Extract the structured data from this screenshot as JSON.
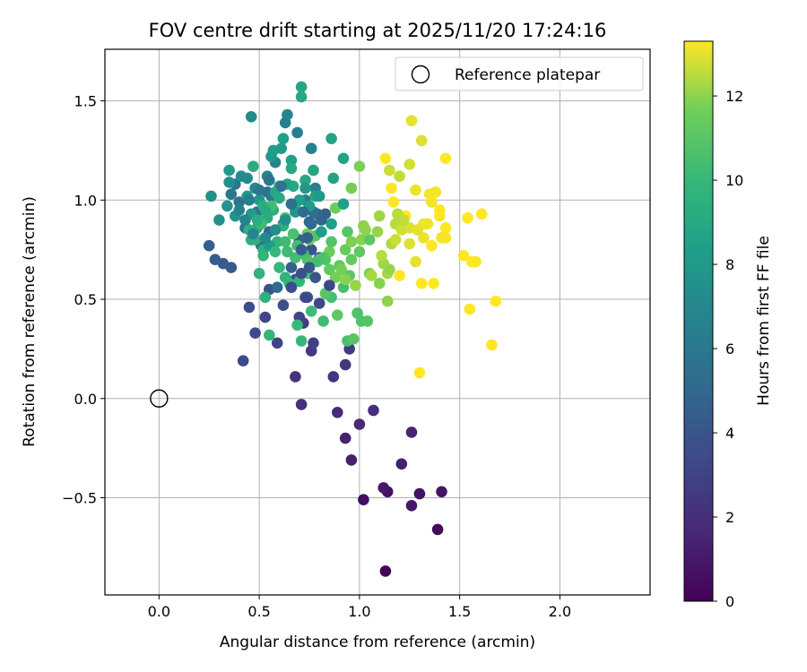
{
  "chart_data": {
    "type": "scatter",
    "title": "FOV centre drift starting at 2025/11/20 17:24:16",
    "xlabel": "Angular distance from reference (arcmin)",
    "ylabel": "Rotation from reference (arcmin)",
    "xlim": [
      -0.27,
      2.45
    ],
    "ylim": [
      -0.99,
      1.76
    ],
    "xticks": [
      0.0,
      0.5,
      1.0,
      1.5,
      2.0
    ],
    "xtick_labels": [
      "0.0",
      "0.5",
      "1.0",
      "1.5",
      "2.0"
    ],
    "yticks": [
      -0.5,
      0.0,
      0.5,
      1.0,
      1.5
    ],
    "ytick_labels": [
      "−0.5",
      "0.0",
      "0.5",
      "1.0",
      "1.5"
    ],
    "grid": true,
    "legend": {
      "position": "top-right",
      "entries": [
        "Reference platepar"
      ]
    },
    "reference_point": {
      "x": 0.0,
      "y": 0.0,
      "label": "Reference platepar"
    },
    "colorbar": {
      "label": "Hours from first FF file",
      "range": [
        0,
        13.3
      ],
      "ticks": [
        0,
        2,
        4,
        6,
        8,
        10,
        12
      ],
      "tick_labels": [
        "0",
        "2",
        "4",
        "6",
        "8",
        "10",
        "12"
      ],
      "colormap": "viridis"
    },
    "points": [
      [
        1.13,
        -0.87,
        0.1
      ],
      [
        1.39,
        -0.66,
        0.3
      ],
      [
        1.02,
        -0.51,
        0.5
      ],
      [
        1.14,
        -0.47,
        0.6
      ],
      [
        1.3,
        -0.48,
        0.7
      ],
      [
        1.41,
        -0.47,
        0.8
      ],
      [
        1.26,
        -0.54,
        0.9
      ],
      [
        1.12,
        -0.45,
        1.0
      ],
      [
        0.96,
        -0.31,
        1.2
      ],
      [
        1.21,
        -0.33,
        1.3
      ],
      [
        0.93,
        -0.2,
        1.4
      ],
      [
        1.26,
        -0.17,
        1.5
      ],
      [
        1.0,
        -0.13,
        1.7
      ],
      [
        0.89,
        -0.07,
        1.8
      ],
      [
        1.07,
        -0.06,
        1.9
      ],
      [
        0.71,
        -0.03,
        2.0
      ],
      [
        0.68,
        0.11,
        2.2
      ],
      [
        0.87,
        0.11,
        2.3
      ],
      [
        0.93,
        0.17,
        2.4
      ],
      [
        0.76,
        0.24,
        2.5
      ],
      [
        0.95,
        0.25,
        2.6
      ],
      [
        0.72,
        0.38,
        2.7
      ],
      [
        0.77,
        0.28,
        2.9
      ],
      [
        0.7,
        0.41,
        3.0
      ],
      [
        0.59,
        0.28,
        3.1
      ],
      [
        0.53,
        0.41,
        3.2
      ],
      [
        0.42,
        0.19,
        3.3
      ],
      [
        0.48,
        0.33,
        3.4
      ],
      [
        0.45,
        0.46,
        3.5
      ],
      [
        0.74,
        0.51,
        3.6
      ],
      [
        0.62,
        0.47,
        3.7
      ],
      [
        0.55,
        0.55,
        3.8
      ],
      [
        0.68,
        0.6,
        3.9
      ],
      [
        0.76,
        0.75,
        4.0
      ],
      [
        0.8,
        0.71,
        4.1
      ],
      [
        0.36,
        0.66,
        4.2
      ],
      [
        0.32,
        0.68,
        4.3
      ],
      [
        0.28,
        0.7,
        4.4
      ],
      [
        0.25,
        0.77,
        4.5
      ],
      [
        0.66,
        0.66,
        4.6
      ],
      [
        0.7,
        0.8,
        4.7
      ],
      [
        0.75,
        0.89,
        4.8
      ],
      [
        0.55,
        0.84,
        4.9
      ],
      [
        0.51,
        0.77,
        5.0
      ],
      [
        0.59,
        0.56,
        5.1
      ],
      [
        0.79,
        0.93,
        5.2
      ],
      [
        0.62,
        0.88,
        5.3
      ],
      [
        0.77,
        0.94,
        5.4
      ],
      [
        0.54,
        1.04,
        5.5
      ],
      [
        0.49,
        0.94,
        5.6
      ],
      [
        0.43,
        0.86,
        5.7
      ],
      [
        0.4,
        0.99,
        5.8
      ],
      [
        0.38,
        1.08,
        5.9
      ],
      [
        0.36,
        1.03,
        6.0
      ],
      [
        0.56,
        1.02,
        6.1
      ],
      [
        0.73,
        1.0,
        6.2
      ],
      [
        0.78,
        1.06,
        6.3
      ],
      [
        0.69,
        1.34,
        6.4
      ],
      [
        0.63,
        1.39,
        6.5
      ],
      [
        0.76,
        1.26,
        6.6
      ],
      [
        0.64,
        1.43,
        6.7
      ],
      [
        0.58,
        1.19,
        6.8
      ],
      [
        0.54,
        1.12,
        6.9
      ],
      [
        0.48,
        1.06,
        7.0
      ],
      [
        0.44,
        1.11,
        7.1
      ],
      [
        0.46,
        1.42,
        7.2
      ],
      [
        0.41,
        1.12,
        7.3
      ],
      [
        0.35,
        1.09,
        7.4
      ],
      [
        0.26,
        1.02,
        7.5
      ],
      [
        0.3,
        0.9,
        7.6
      ],
      [
        0.38,
        0.92,
        7.7
      ],
      [
        0.34,
        0.97,
        7.8
      ],
      [
        0.44,
        1.02,
        7.9
      ],
      [
        0.5,
        1.0,
        8.0
      ],
      [
        0.56,
        1.22,
        8.1
      ],
      [
        0.61,
        1.26,
        8.2
      ],
      [
        0.62,
        1.31,
        8.3
      ],
      [
        0.57,
        1.25,
        8.4
      ],
      [
        0.66,
        1.2,
        8.5
      ],
      [
        0.86,
        1.31,
        8.6
      ],
      [
        0.92,
        1.21,
        8.7
      ],
      [
        0.77,
        1.15,
        8.8
      ],
      [
        0.73,
        1.1,
        8.9
      ],
      [
        0.67,
        1.07,
        9.0
      ],
      [
        0.6,
        1.01,
        9.1
      ],
      [
        0.54,
        0.91,
        9.2
      ],
      [
        0.49,
        0.86,
        9.3
      ],
      [
        0.46,
        0.8,
        9.4
      ],
      [
        0.52,
        0.75,
        9.5
      ],
      [
        0.53,
        0.51,
        9.6
      ],
      [
        0.5,
        0.63,
        9.7
      ],
      [
        0.55,
        0.32,
        9.8
      ],
      [
        0.65,
        0.58,
        9.9
      ],
      [
        0.71,
        0.29,
        10.0
      ],
      [
        0.69,
        0.37,
        10.1
      ],
      [
        0.76,
        0.44,
        10.2
      ],
      [
        0.82,
        0.39,
        10.3
      ],
      [
        0.86,
        0.51,
        10.4
      ],
      [
        0.92,
        0.56,
        10.5
      ],
      [
        0.94,
        0.29,
        10.6
      ],
      [
        0.99,
        0.43,
        10.7
      ],
      [
        1.01,
        0.39,
        10.8
      ],
      [
        1.04,
        0.39,
        10.9
      ],
      [
        0.97,
        0.3,
        11.0
      ],
      [
        0.95,
        0.62,
        11.1
      ],
      [
        0.9,
        0.67,
        11.2
      ],
      [
        0.85,
        0.65,
        11.3
      ],
      [
        0.8,
        0.7,
        11.4
      ],
      [
        0.75,
        0.8,
        11.5
      ],
      [
        0.88,
        0.96,
        11.6
      ],
      [
        0.96,
        1.06,
        11.7
      ],
      [
        1.0,
        1.17,
        11.8
      ],
      [
        1.01,
        0.8,
        11.9
      ],
      [
        1.02,
        0.87,
        12.0
      ],
      [
        1.09,
        0.84,
        12.1
      ],
      [
        1.12,
        0.68,
        12.2
      ],
      [
        1.14,
        0.63,
        12.3
      ],
      [
        1.16,
        0.78,
        12.4
      ],
      [
        1.18,
        0.88,
        12.5
      ],
      [
        1.2,
        1.12,
        12.6
      ],
      [
        1.15,
        1.15,
        12.7
      ],
      [
        1.25,
        1.18,
        12.8
      ],
      [
        1.31,
        1.3,
        12.9
      ],
      [
        1.26,
        1.4,
        13.0
      ],
      [
        1.28,
        1.05,
        13.1
      ],
      [
        1.35,
        1.03,
        13.2
      ],
      [
        1.4,
        0.92,
        13.25
      ],
      [
        1.43,
        0.81,
        13.25
      ],
      [
        1.55,
        0.45,
        13.25
      ],
      [
        1.54,
        0.91,
        13.3
      ],
      [
        1.61,
        0.93,
        13.3
      ],
      [
        1.66,
        0.27,
        13.3
      ],
      [
        1.68,
        0.49,
        13.3
      ],
      [
        1.56,
        0.69,
        13.3
      ],
      [
        1.52,
        0.72,
        13.3
      ],
      [
        1.37,
        0.58,
        13.3
      ],
      [
        1.31,
        0.58,
        13.3
      ],
      [
        1.3,
        0.13,
        13.3
      ],
      [
        1.36,
        0.77,
        13.3
      ],
      [
        1.43,
        0.86,
        13.3
      ],
      [
        1.4,
        0.95,
        13.3
      ],
      [
        1.43,
        1.21,
        13.3
      ],
      [
        1.23,
        0.92,
        13.3
      ],
      [
        1.2,
        0.62,
        13.3
      ],
      [
        1.16,
        1.06,
        13.3
      ],
      [
        1.13,
        1.21,
        13.3
      ],
      [
        1.17,
        0.99,
        13.3
      ],
      [
        0.78,
        0.82,
        10.9
      ],
      [
        0.83,
        0.7,
        10.8
      ],
      [
        0.74,
        0.63,
        10.5
      ],
      [
        0.68,
        0.71,
        10.4
      ],
      [
        0.64,
        0.74,
        10.2
      ],
      [
        0.6,
        0.66,
        10.0
      ],
      [
        0.7,
        0.59,
        9.9
      ],
      [
        0.63,
        0.61,
        9.8
      ],
      [
        0.59,
        0.79,
        9.7
      ],
      [
        0.62,
        0.87,
        9.6
      ],
      [
        0.68,
        0.96,
        9.5
      ],
      [
        0.57,
        0.95,
        9.4
      ],
      [
        0.52,
        0.97,
        9.3
      ],
      [
        0.47,
        1.17,
        9.2
      ],
      [
        0.6,
        1.07,
        9.1
      ],
      [
        0.66,
        1.16,
        9.0
      ],
      [
        0.71,
        1.52,
        8.9
      ],
      [
        0.71,
        1.57,
        8.8
      ],
      [
        0.78,
        1.02,
        8.7
      ],
      [
        0.87,
        1.11,
        8.6
      ],
      [
        0.92,
        0.98,
        8.5
      ],
      [
        0.86,
        0.88,
        8.4
      ],
      [
        0.81,
        0.84,
        8.3
      ],
      [
        0.55,
        0.77,
        8.2
      ],
      [
        0.46,
        0.93,
        8.1
      ],
      [
        0.35,
        1.15,
        8.0
      ],
      [
        0.74,
        0.83,
        11.5
      ],
      [
        0.85,
        0.74,
        11.6
      ],
      [
        0.88,
        0.61,
        11.7
      ],
      [
        1.05,
        0.63,
        11.8
      ],
      [
        1.1,
        0.58,
        11.9
      ],
      [
        1.14,
        0.49,
        12.0
      ],
      [
        1.15,
        0.65,
        12.1
      ],
      [
        0.89,
        0.42,
        11.2
      ],
      [
        0.83,
        0.53,
        11.0
      ],
      [
        0.74,
        0.7,
        10.8
      ],
      [
        0.67,
        0.83,
        10.6
      ],
      [
        0.63,
        0.91,
        10.5
      ],
      [
        0.56,
        0.97,
        10.3
      ],
      [
        0.51,
        0.88,
        10.2
      ],
      [
        0.93,
        0.75,
        11.4
      ],
      [
        0.96,
        0.7,
        11.3
      ],
      [
        1.0,
        0.74,
        11.2
      ],
      [
        1.05,
        0.8,
        11.1
      ],
      [
        0.94,
        0.84,
        11.0
      ],
      [
        0.86,
        0.79,
        10.9
      ],
      [
        0.82,
        0.71,
        10.7
      ],
      [
        0.79,
        0.69,
        10.5
      ],
      [
        0.72,
        0.73,
        10.4
      ],
      [
        0.69,
        0.77,
        10.3
      ],
      [
        0.63,
        0.79,
        10.2
      ],
      [
        0.58,
        0.74,
        10.0
      ],
      [
        0.52,
        0.72,
        9.8
      ],
      [
        0.48,
        0.8,
        9.6
      ],
      [
        0.45,
        0.85,
        9.5
      ],
      [
        0.49,
        0.9,
        9.3
      ],
      [
        0.53,
        0.95,
        9.1
      ],
      [
        0.58,
        1.04,
        8.9
      ],
      [
        0.64,
        1.08,
        8.7
      ],
      [
        0.7,
        1.0,
        8.5
      ],
      [
        0.75,
        0.97,
        8.3
      ],
      [
        0.8,
        1.02,
        8.1
      ],
      [
        0.73,
        1.06,
        7.9
      ],
      [
        0.68,
        0.94,
        7.7
      ],
      [
        0.63,
        0.9,
        7.5
      ],
      [
        0.58,
        0.85,
        7.3
      ],
      [
        0.53,
        0.81,
        7.1
      ],
      [
        0.47,
        0.83,
        6.9
      ],
      [
        0.43,
        0.9,
        6.7
      ],
      [
        0.4,
        0.95,
        6.5
      ],
      [
        0.45,
        1.0,
        6.3
      ],
      [
        0.5,
        1.05,
        6.1
      ],
      [
        0.55,
        1.1,
        5.9
      ],
      [
        0.61,
        1.07,
        5.7
      ],
      [
        0.66,
        0.98,
        5.5
      ],
      [
        0.72,
        0.94,
        5.3
      ],
      [
        0.76,
        0.88,
        5.1
      ],
      [
        0.81,
        0.9,
        4.9
      ],
      [
        0.83,
        0.93,
        4.7
      ],
      [
        0.74,
        0.81,
        4.5
      ],
      [
        0.71,
        0.75,
        4.3
      ],
      [
        0.75,
        0.66,
        4.1
      ],
      [
        0.78,
        0.61,
        3.9
      ],
      [
        0.71,
        0.63,
        3.7
      ],
      [
        0.66,
        0.56,
        3.5
      ],
      [
        0.73,
        0.51,
        3.4
      ],
      [
        0.8,
        0.48,
        3.3
      ],
      [
        0.85,
        0.57,
        3.2
      ],
      [
        1.28,
        0.69,
        13.0
      ],
      [
        1.32,
        0.81,
        13.1
      ],
      [
        1.25,
        0.78,
        12.9
      ],
      [
        1.21,
        0.85,
        12.8
      ],
      [
        1.25,
        0.86,
        12.9
      ],
      [
        1.36,
        0.99,
        13.2
      ],
      [
        1.32,
        0.88,
        13.1
      ],
      [
        1.38,
        1.04,
        13.2
      ],
      [
        1.41,
        0.81,
        13.2
      ],
      [
        1.58,
        0.69,
        13.3
      ],
      [
        1.34,
        0.88,
        13.1
      ],
      [
        1.29,
        0.85,
        13.0
      ],
      [
        1.18,
        0.8,
        12.7
      ],
      [
        1.11,
        0.72,
        12.5
      ],
      [
        1.06,
        0.62,
        12.3
      ],
      [
        0.98,
        0.57,
        12.1
      ],
      [
        0.93,
        0.6,
        11.9
      ],
      [
        0.91,
        0.65,
        11.7
      ],
      [
        0.96,
        0.79,
        11.8
      ],
      [
        1.03,
        0.85,
        12.0
      ],
      [
        1.1,
        0.92,
        12.2
      ],
      [
        1.22,
        0.9,
        12.6
      ],
      [
        1.19,
        0.93,
        12.5
      ]
    ]
  }
}
